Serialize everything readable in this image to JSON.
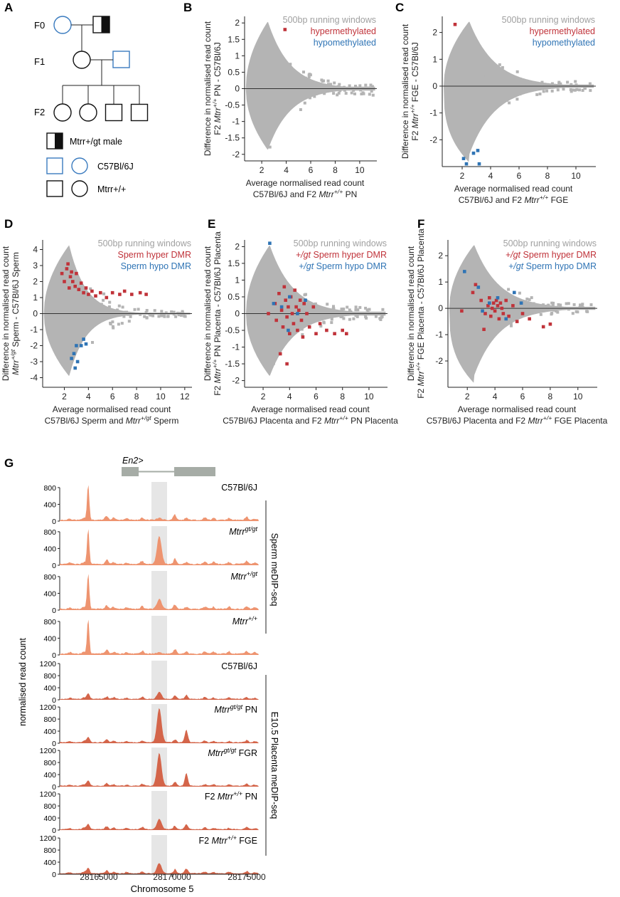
{
  "colors": {
    "grey": "#b4b4b4",
    "red": "#c0333a",
    "blue": "#2f74b5",
    "blueOutline": "#3a7bbf",
    "sperm": "#ee9470",
    "placenta": "#d4654a",
    "hilite": "#e6e6e6",
    "gene": "#a6aca6"
  },
  "panelA": {
    "label": "A",
    "generations": [
      "F0",
      "F1",
      "F2"
    ],
    "legend": {
      "male_het": "Mtrr+/gt male",
      "c57": "C57Bl/6J",
      "wt": "Mtrr+/+"
    }
  },
  "chart_data": [
    {
      "panel": "B",
      "type": "scatter",
      "ylabel": [
        "Difference in normalised read count",
        "F2 Mtrr+/+ PN - C57Bl/6J"
      ],
      "xlabel": [
        "Average normalised read count",
        "C57Bl/6J and F2 Mtrr+/+ PN"
      ],
      "xlim": [
        0.6,
        11.4
      ],
      "ylim": [
        -2.2,
        2.2
      ],
      "xticks": [
        2,
        4,
        6,
        8,
        10
      ],
      "yticks": [
        2,
        1.5,
        1,
        0.5,
        0,
        -0.5,
        -1,
        -1.5,
        -2
      ],
      "legend": [
        "500bp running windows",
        "hypermethylated",
        "hypomethylated"
      ],
      "highlight": {
        "red": [
          [
            3.9,
            1.8
          ]
        ],
        "blue": []
      }
    },
    {
      "panel": "C",
      "type": "scatter",
      "ylabel": [
        "Difference in normalised read count",
        "F2 Mtrr+/+ FGE - C57Bl/6J"
      ],
      "xlabel": [
        "Average normalised read count",
        "C57Bl/6J and F2 Mtrr+/+ FGE"
      ],
      "xlim": [
        0.6,
        11.4
      ],
      "ylim": [
        -3.0,
        2.6
      ],
      "xticks": [
        2,
        4,
        6,
        8,
        10
      ],
      "yticks": [
        2,
        1,
        0,
        -1,
        -2
      ],
      "legend": [
        "500bp running windows",
        "hypermethylated",
        "hypomethylated"
      ],
      "highlight": {
        "red": [
          [
            1.5,
            2.3
          ]
        ],
        "blue": [
          [
            2.1,
            -2.7
          ],
          [
            2.3,
            -2.9
          ],
          [
            2.8,
            -2.5
          ],
          [
            3.1,
            -2.4
          ],
          [
            3.2,
            -2.9
          ]
        ]
      }
    },
    {
      "panel": "D",
      "type": "scatter",
      "ylabel": [
        "Difference in normalised read count",
        "Mtrr+/gt Sperm - C57Bl/6J Sperm"
      ],
      "xlabel": [
        "Average normalised read count",
        "C57Bl/6J Sperm and Mtrr+/gt Sperm"
      ],
      "xlim": [
        0.2,
        12.6
      ],
      "ylim": [
        -4.6,
        4.6
      ],
      "xticks": [
        2,
        4,
        6,
        8,
        10,
        12
      ],
      "yticks": [
        4,
        3,
        2,
        1,
        0,
        -1,
        -2,
        -3,
        -4
      ],
      "legend": [
        "500bp running windows",
        "Sperm hyper DMR",
        "Sperm hypo DMR"
      ],
      "highlight": {
        "red": [
          [
            1.8,
            2.5
          ],
          [
            2.0,
            2.0
          ],
          [
            2.2,
            2.8
          ],
          [
            2.4,
            1.6
          ],
          [
            2.5,
            2.3
          ],
          [
            2.7,
            2.0
          ],
          [
            2.9,
            1.7
          ],
          [
            3.0,
            2.5
          ],
          [
            3.2,
            1.5
          ],
          [
            3.4,
            1.9
          ],
          [
            3.6,
            1.3
          ],
          [
            3.8,
            1.6
          ],
          [
            4.0,
            1.2
          ],
          [
            4.3,
            1.4
          ],
          [
            4.6,
            1.1
          ],
          [
            5.0,
            1.3
          ],
          [
            5.5,
            1.0
          ],
          [
            6.0,
            1.3
          ],
          [
            6.6,
            1.2
          ],
          [
            7.0,
            1.4
          ],
          [
            7.6,
            1.2
          ],
          [
            8.3,
            1.3
          ],
          [
            8.8,
            1.2
          ],
          [
            2.3,
            3.1
          ],
          [
            2.6,
            2.6
          ]
        ],
        "blue": [
          [
            2.8,
            -2.5
          ],
          [
            3.1,
            -3.0
          ],
          [
            3.4,
            -2.0
          ],
          [
            2.9,
            -3.4
          ],
          [
            3.6,
            -1.6
          ],
          [
            3.8,
            -1.9
          ],
          [
            3.0,
            -2.0
          ],
          [
            2.6,
            -2.8
          ]
        ]
      }
    },
    {
      "panel": "E",
      "type": "scatter",
      "ylabel": [
        "Difference in normalised read count",
        "F2 Mtrr+/+ PN Placenta - C57Bl/6J Placenta"
      ],
      "xlabel": [
        "Average normalised read count",
        "C57Bl/6J Placenta and F2 Mtrr+/+ PN Placenta"
      ],
      "xlim": [
        0.6,
        11.4
      ],
      "ylim": [
        -2.2,
        2.2
      ],
      "xticks": [
        2,
        4,
        6,
        8,
        10
      ],
      "yticks": [
        2,
        1.5,
        1,
        0.5,
        0,
        -0.5,
        -1,
        -1.5,
        -2
      ],
      "legend": [
        "500bp running windows",
        "+/gt Sperm hyper DMR",
        "+/gt Sperm hypo DMR"
      ],
      "highlight": {
        "red": [
          [
            2.4,
            0.0
          ],
          [
            2.9,
            0.3
          ],
          [
            3.0,
            -0.2
          ],
          [
            3.2,
            0.6
          ],
          [
            3.4,
            0.1
          ],
          [
            3.5,
            -0.4
          ],
          [
            3.6,
            0.8
          ],
          [
            3.7,
            0.4
          ],
          [
            3.8,
            -0.1
          ],
          [
            3.9,
            0.2
          ],
          [
            4.0,
            -0.6
          ],
          [
            4.1,
            0.5
          ],
          [
            4.2,
            0.0
          ],
          [
            4.3,
            -0.3
          ],
          [
            4.4,
            0.7
          ],
          [
            4.5,
            0.2
          ],
          [
            4.6,
            -0.5
          ],
          [
            4.7,
            0.1
          ],
          [
            4.8,
            0.4
          ],
          [
            4.9,
            -0.2
          ],
          [
            5.0,
            -0.7
          ],
          [
            5.1,
            0.3
          ],
          [
            5.3,
            0.0
          ],
          [
            5.5,
            -0.4
          ],
          [
            5.8,
            0.2
          ],
          [
            6.0,
            -0.6
          ],
          [
            6.3,
            -0.3
          ],
          [
            6.8,
            -0.5
          ],
          [
            7.4,
            -0.6
          ],
          [
            8.0,
            -0.5
          ],
          [
            8.3,
            -0.6
          ],
          [
            3.3,
            -1.2
          ],
          [
            3.8,
            -1.5
          ]
        ],
        "blue": [
          [
            2.5,
            2.1
          ],
          [
            2.8,
            0.3
          ],
          [
            3.4,
            0.2
          ],
          [
            4.0,
            0.5
          ],
          [
            4.6,
            0.0
          ],
          [
            5.2,
            0.4
          ],
          [
            3.9,
            -0.5
          ]
        ]
      }
    },
    {
      "panel": "F",
      "type": "scatter",
      "ylabel": [
        "Difference in normalised read count",
        "F2 Mtrr+/+ FGE Placenta - C57Bl/6J Placenta"
      ],
      "xlabel": [
        "Average normalised read count",
        "C57Bl/6J Placenta and F2 Mtrr+/+ FGE Placenta"
      ],
      "xlim": [
        0.6,
        11.4
      ],
      "ylim": [
        -3.0,
        2.6
      ],
      "xticks": [
        2,
        4,
        6,
        8,
        10
      ],
      "yticks": [
        2,
        1,
        0,
        -1,
        -2
      ],
      "legend": [
        "500bp running windows",
        "+/gt Sperm hyper DMR",
        "+/gt Sperm hypo DMR"
      ],
      "highlight": {
        "red": [
          [
            1.6,
            -0.1
          ],
          [
            2.4,
            0.6
          ],
          [
            3.0,
            0.3
          ],
          [
            3.3,
            -0.2
          ],
          [
            3.5,
            0.1
          ],
          [
            3.6,
            0.4
          ],
          [
            3.7,
            -0.3
          ],
          [
            3.8,
            0.0
          ],
          [
            3.9,
            0.2
          ],
          [
            4.0,
            -0.1
          ],
          [
            4.1,
            0.3
          ],
          [
            4.2,
            0.1
          ],
          [
            4.3,
            -0.4
          ],
          [
            4.4,
            0.2
          ],
          [
            4.5,
            0.0
          ],
          [
            4.6,
            -0.2
          ],
          [
            4.8,
            0.3
          ],
          [
            5.0,
            -0.3
          ],
          [
            5.3,
            0.1
          ],
          [
            5.6,
            -0.5
          ],
          [
            6.0,
            -0.2
          ],
          [
            6.5,
            -0.4
          ],
          [
            7.5,
            -0.7
          ],
          [
            8.0,
            -0.6
          ],
          [
            3.2,
            -0.8
          ],
          [
            2.6,
            0.9
          ]
        ],
        "blue": [
          [
            1.8,
            1.4
          ],
          [
            2.8,
            0.8
          ],
          [
            3.6,
            0.2
          ],
          [
            4.2,
            0.4
          ],
          [
            4.8,
            -0.4
          ],
          [
            5.4,
            0.6
          ],
          [
            5.9,
            0.2
          ],
          [
            3.1,
            -0.1
          ]
        ]
      }
    }
  ],
  "panelG": {
    "label": "G",
    "gene": "En2>",
    "xticks": [
      "28165000",
      "28170000",
      "28175000"
    ],
    "xlabel": "Chromosome 5",
    "ylabel": "normalised read count",
    "sperm_group": "Sperm meDIP-seq",
    "placenta_group": "E10.5 Placenta meDIP-seq",
    "sperm_yticks": [
      "0",
      "200",
      "400",
      "600",
      "800"
    ],
    "placenta_yticks": [
      "0",
      "200",
      "400",
      "600",
      "800",
      "1000",
      "1200"
    ],
    "tracks": [
      {
        "type": "sperm",
        "label": "C57Bl/6J",
        "peak2": 0.05
      },
      {
        "type": "sperm",
        "label": "Mtrrgt/gt",
        "peak2": 0.85
      },
      {
        "type": "sperm",
        "label": "Mtrr+/gt",
        "peak2": 0.3
      },
      {
        "type": "sperm",
        "label": "Mtrr+/+",
        "peak2": 0.05
      },
      {
        "type": "placenta",
        "label": "C57Bl/6J",
        "peak2": 0.2
      },
      {
        "type": "placenta",
        "label": "Mtrrgt/gt PN",
        "peak2": 1.0
      },
      {
        "type": "placenta",
        "label": "Mtrrgt/gt FGR",
        "peak2": 0.95
      },
      {
        "type": "placenta",
        "label": "F2 Mtrr+/+ PN",
        "peak2": 0.3
      },
      {
        "type": "placenta",
        "label": "F2 Mtrr+/+ FGE",
        "peak2": 0.3
      }
    ]
  }
}
